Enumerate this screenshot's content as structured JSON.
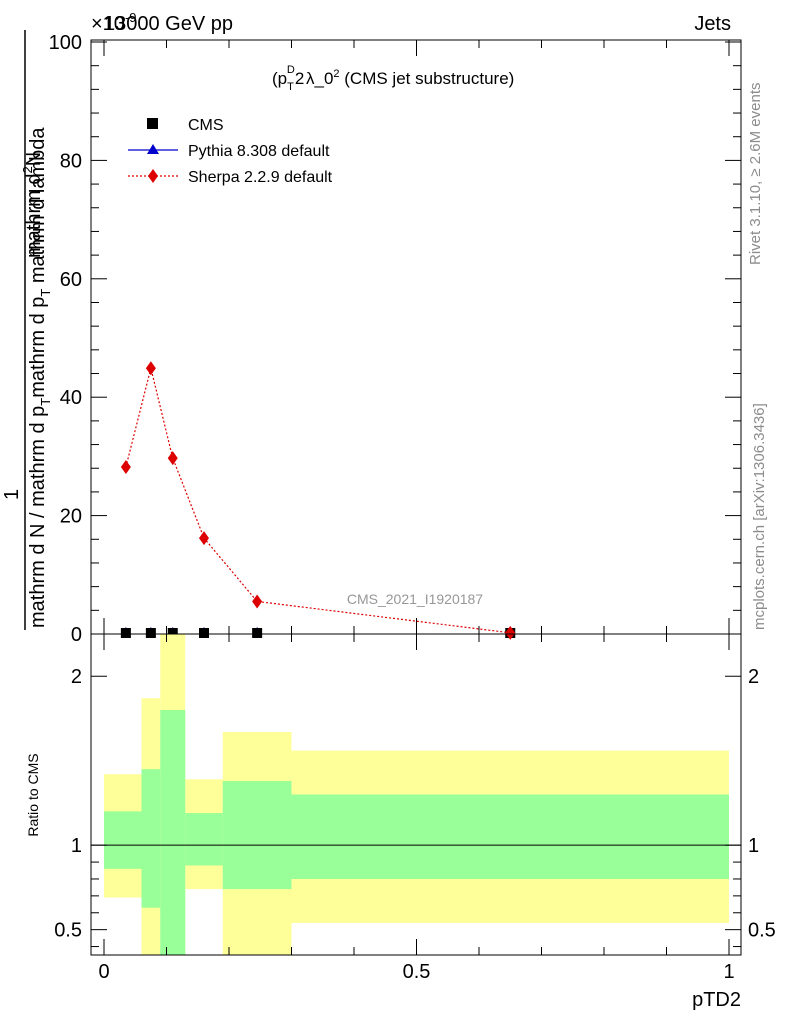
{
  "header": {
    "left": "13000 GeV pp",
    "right": "Jets",
    "exponent": "×10",
    "exponent_power": "-9"
  },
  "side_text": {
    "rivet": "Rivet 3.1.10, ≥ 2.6M events",
    "mcplots": "mcplots.cern.ch [arXiv:1306.3436]"
  },
  "watermark": "CMS_2021_I1920187",
  "chart_data": [
    {
      "type": "scatter",
      "title_parts": {
        "base": "(p",
        "sub": "T",
        "sup": "D",
        "power": "2",
        "rest": " λ_0",
        "power2": "2",
        "tail": " (CMS jet substructure)"
      },
      "ylabel_numerator": "1",
      "ylabel_denominator": "mathrm d N / mathrm d p_T mathrm d p_T mathrm d lambda",
      "ylabel_parts": {
        "num": "mathrm d",
        "num_sup": "2",
        "num_tail": "N",
        "den_a": "mathrm d N / mathrm d p",
        "den_a_sub": "T",
        "den_b": "mathrm d p",
        "den_b_sub": "T",
        "den_c": " mathrm d lambda"
      },
      "xlim": [
        0,
        1
      ],
      "ylim": [
        0,
        100
      ],
      "yticks": [
        0,
        20,
        40,
        60,
        80,
        100
      ],
      "ytick_labels": [
        "0",
        "20",
        "40",
        "60",
        "80",
        "100"
      ],
      "legend_position": "top-left",
      "series": [
        {
          "name": "CMS",
          "marker": "square",
          "color": "#000000",
          "x": [
            0.035,
            0.075,
            0.11,
            0.16,
            0.245,
            0.65
          ],
          "y": [
            0.0,
            0.0,
            0.0,
            0.0,
            0.0,
            0.0
          ]
        },
        {
          "name": "Pythia 8.308 default",
          "marker": "triangle",
          "color": "#0000cc",
          "x": [
            0.035,
            0.075,
            0.11,
            0.16,
            0.245,
            0.65
          ],
          "y": [
            0.0,
            0.0,
            0.0,
            0.0,
            0.0,
            0.0
          ]
        },
        {
          "name": "Sherpa 2.2.9 default",
          "marker": "diamond",
          "color": "#dd0000",
          "x": [
            0.035,
            0.075,
            0.11,
            0.16,
            0.245,
            0.65
          ],
          "y": [
            28.2,
            44.9,
            29.7,
            16.2,
            5.5,
            0.2
          ]
        }
      ]
    },
    {
      "type": "area",
      "ylabel": "Ratio to CMS",
      "xlabel": "pTD2",
      "xlim": [
        0,
        1
      ],
      "ylim": [
        0.35,
        2.25
      ],
      "yticks": [
        0.5,
        1,
        2
      ],
      "ytick_labels": [
        "0.5",
        "1",
        "2"
      ],
      "xticks": [
        0,
        0.5,
        1
      ],
      "xtick_labels": [
        "0",
        "0.5",
        "1"
      ],
      "reference_line": 1,
      "bands": {
        "bins": [
          [
            0.0,
            0.06
          ],
          [
            0.06,
            0.09
          ],
          [
            0.09,
            0.13
          ],
          [
            0.13,
            0.19
          ],
          [
            0.19,
            0.3
          ],
          [
            0.3,
            1.0
          ]
        ],
        "inner_color": "#99ff99",
        "outer_color": "#ffff99",
        "inner_low": [
          0.86,
          0.63,
          0.35,
          0.88,
          0.74,
          0.8
        ],
        "inner_high": [
          1.2,
          1.45,
          1.8,
          1.19,
          1.38,
          1.3
        ],
        "outer_low": [
          0.69,
          0.35,
          0.35,
          0.74,
          0.35,
          0.54
        ],
        "outer_high": [
          1.42,
          1.87,
          2.25,
          1.39,
          1.67,
          1.56
        ]
      }
    }
  ]
}
